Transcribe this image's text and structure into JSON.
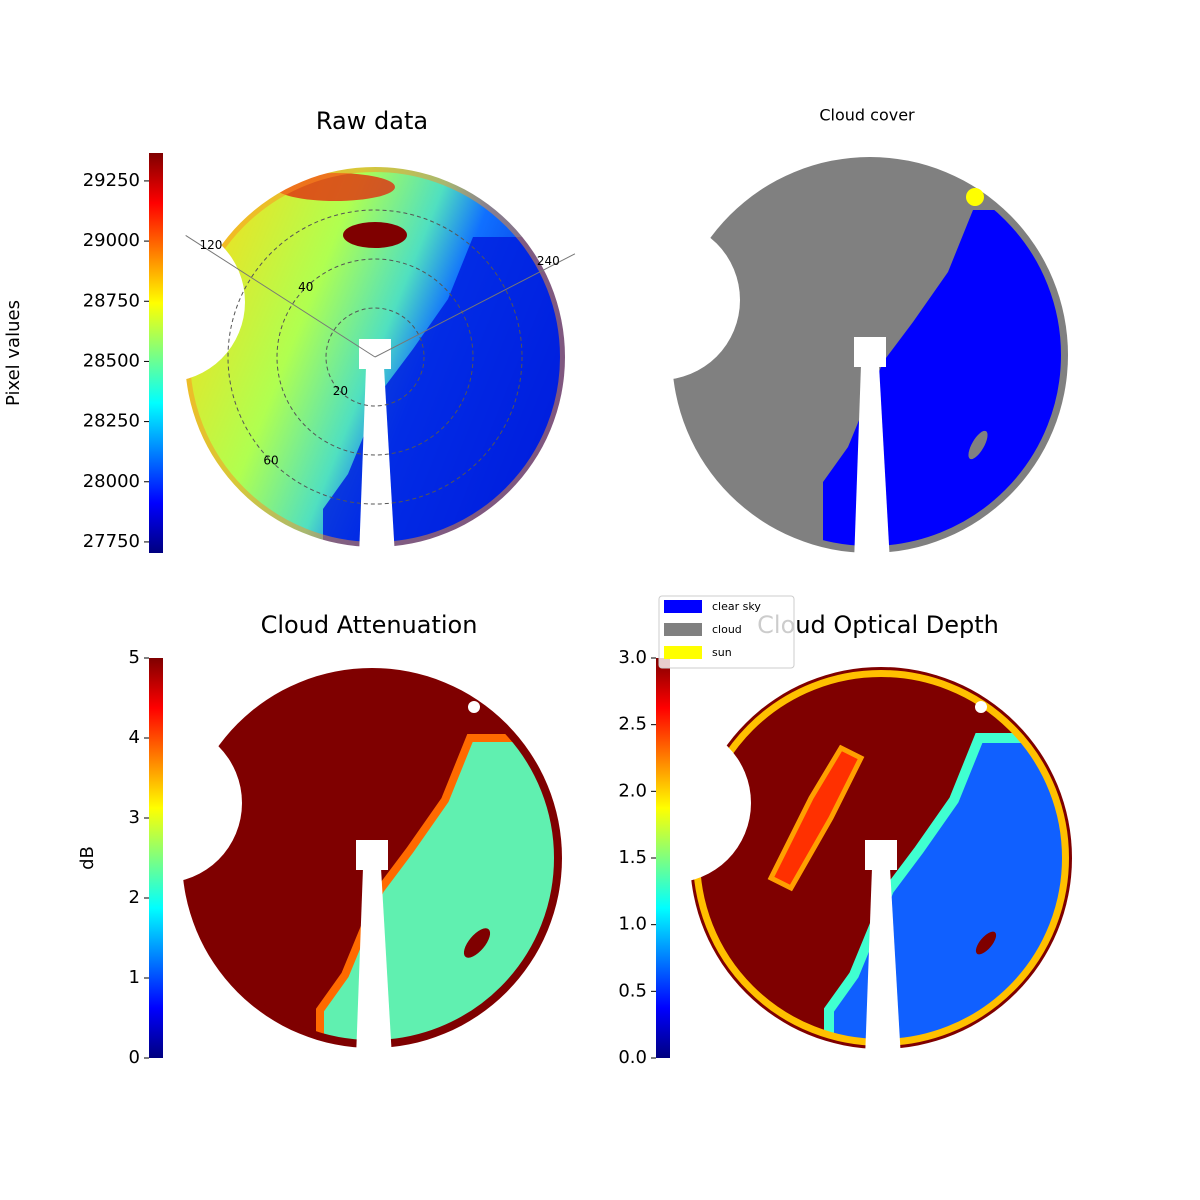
{
  "chart_data": [
    {
      "type": "sky-image",
      "title": "Raw data",
      "colorbar_label": "Pixel values",
      "colormap": "jet",
      "clim": [
        27704,
        29366
      ],
      "cticks": [
        27750,
        28000,
        28250,
        28500,
        28750,
        29000,
        29250
      ],
      "azimuth_labels": [
        120,
        240
      ],
      "zenith_rings": [
        20,
        40,
        60
      ]
    },
    {
      "type": "cloud-mask",
      "title": "Cloud cover",
      "series": [
        {
          "name": "clear sky",
          "color": "#0000ff"
        },
        {
          "name": "cloud",
          "color": "#808080"
        },
        {
          "name": "sun",
          "color": "#ffff00"
        }
      ]
    },
    {
      "type": "sky-image",
      "title": "Cloud Attenuation",
      "colorbar_label": "dB",
      "colormap": "jet",
      "clim": [
        0,
        5
      ],
      "cticks": [
        0,
        1,
        2,
        3,
        4,
        5
      ]
    },
    {
      "type": "sky-image",
      "title": "Cloud Optical Depth",
      "colormap": "jet",
      "clim": [
        0,
        3
      ],
      "cticks": [
        {
          "value": 0,
          "label": "0.0"
        },
        {
          "value": 0.5,
          "label": "0.5"
        },
        {
          "value": 1,
          "label": "1.0"
        },
        {
          "value": 1.5,
          "label": "1.5"
        },
        {
          "value": 2,
          "label": "2.0"
        },
        {
          "value": 2.5,
          "label": "2.5"
        },
        {
          "value": 3,
          "label": "3.0"
        }
      ]
    }
  ]
}
